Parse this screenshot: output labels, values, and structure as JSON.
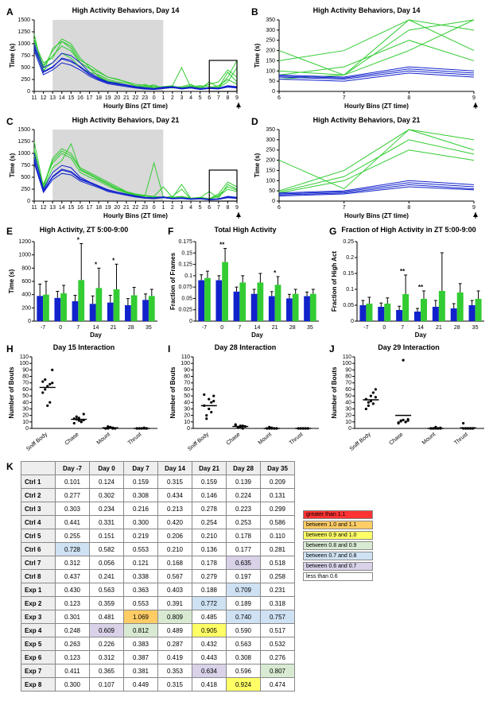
{
  "colors": {
    "green": "#33cc33",
    "blue": "#1122cc",
    "shade": "#d9d9d9",
    "black": "#000000",
    "grid": "#cccccc",
    "red": "#ff3333",
    "orange": "#ffcc66",
    "yellow": "#ffff66",
    "ltgreen": "#d9ead3",
    "ltblue": "#cfe2f3",
    "ltpurple": "#d9d2e9",
    "white": "#ffffff"
  },
  "panelA": {
    "label": "A",
    "title": "High Activity Behaviors, Day 14",
    "ylabel": "Time (s)",
    "xlabel": "Hourly Bins (ZT time)",
    "ylim": [
      0,
      1500
    ],
    "ytick": 250,
    "xticks": [
      "11",
      "12",
      "13",
      "14",
      "15",
      "16",
      "17",
      "18",
      "19",
      "20",
      "21",
      "22",
      "23",
      "0",
      "1",
      "2",
      "3",
      "4",
      "5",
      "6",
      "7",
      "8",
      "9"
    ],
    "shade_x": [
      2,
      14
    ],
    "zoom_box": [
      19,
      22,
      0,
      650
    ],
    "lines": {
      "green": [
        [
          1050,
          600,
          700,
          1050,
          900,
          600,
          480,
          400,
          300,
          250,
          200,
          100,
          150,
          80,
          100,
          120,
          500,
          80,
          100,
          60,
          80,
          400,
          200
        ],
        [
          1100,
          500,
          850,
          1100,
          1000,
          700,
          500,
          300,
          200,
          150,
          120,
          80,
          100,
          140,
          60,
          80,
          100,
          150,
          50,
          200,
          80,
          300,
          650
        ],
        [
          1000,
          450,
          600,
          800,
          700,
          500,
          400,
          350,
          250,
          200,
          180,
          120,
          100,
          80,
          60,
          90,
          70,
          100,
          60,
          80,
          120,
          250,
          150
        ],
        [
          900,
          550,
          750,
          950,
          850,
          600,
          480,
          320,
          220,
          180,
          140,
          90,
          110,
          70,
          90,
          110,
          80,
          120,
          80,
          150,
          200,
          450,
          300
        ],
        [
          1200,
          400,
          900,
          1050,
          950,
          650,
          550,
          420,
          300,
          260,
          200,
          150,
          130,
          110,
          90,
          70,
          80,
          100,
          120,
          100,
          80,
          200,
          500
        ]
      ],
      "blue": [
        [
          950,
          400,
          500,
          700,
          650,
          500,
          350,
          250,
          180,
          150,
          120,
          80,
          60,
          50,
          70,
          90,
          60,
          80,
          50,
          70,
          60,
          100,
          80
        ],
        [
          850,
          350,
          450,
          600,
          550,
          450,
          320,
          230,
          160,
          130,
          100,
          70,
          50,
          40,
          60,
          80,
          50,
          70,
          40,
          60,
          50,
          90,
          70
        ],
        [
          1000,
          500,
          600,
          800,
          750,
          600,
          400,
          280,
          200,
          170,
          140,
          100,
          80,
          60,
          90,
          100,
          70,
          90,
          60,
          80,
          70,
          120,
          100
        ],
        [
          900,
          420,
          520,
          680,
          620,
          520,
          370,
          260,
          190,
          160,
          130,
          90,
          70,
          55,
          75,
          95,
          65,
          85,
          55,
          75,
          65,
          110,
          90
        ]
      ]
    }
  },
  "panelB": {
    "label": "B",
    "title": "High Activity Behaviors, Day 14",
    "ylabel": "Time (s)",
    "xlabel": "Hourly Bins (ZT time)",
    "ylim": [
      0,
      350
    ],
    "ytick": 50,
    "xticks": [
      "6",
      "7",
      "8",
      "9"
    ],
    "lines": {
      "green": [
        [
          60,
          80,
          400,
          200
        ],
        [
          200,
          80,
          300,
          650
        ],
        [
          80,
          120,
          250,
          150
        ],
        [
          150,
          200,
          450,
          300
        ],
        [
          100,
          80,
          200,
          500
        ]
      ],
      "blue": [
        [
          70,
          60,
          100,
          80
        ],
        [
          60,
          50,
          90,
          70
        ],
        [
          80,
          70,
          120,
          100
        ],
        [
          75,
          65,
          110,
          90
        ]
      ]
    }
  },
  "panelC": {
    "label": "C",
    "title": "High Activity Behaviors, Day 21",
    "ylabel": "Time (s)",
    "xlabel": "Hourly Bins (ZT time)",
    "ylim": [
      0,
      1500
    ],
    "ytick": 250,
    "xticks": [
      "11",
      "12",
      "13",
      "14",
      "15",
      "16",
      "17",
      "18",
      "19",
      "20",
      "21",
      "22",
      "23",
      "0",
      "1",
      "2",
      "3",
      "4",
      "5",
      "6",
      "7",
      "8",
      "9"
    ],
    "shade_x": [
      2,
      14
    ],
    "zoom_box": [
      19,
      22,
      0,
      650
    ],
    "lines": {
      "green": [
        [
          1250,
          300,
          900,
          1100,
          1000,
          700,
          600,
          500,
          400,
          300,
          200,
          150,
          120,
          100,
          300,
          80,
          100,
          60,
          80,
          50,
          150,
          400,
          300
        ],
        [
          1100,
          250,
          700,
          850,
          1200,
          650,
          550,
          450,
          350,
          250,
          180,
          130,
          100,
          800,
          90,
          70,
          90,
          50,
          70,
          200,
          60,
          350,
          250
        ],
        [
          950,
          350,
          800,
          1000,
          900,
          600,
          500,
          420,
          320,
          230,
          170,
          120,
          80,
          90,
          70,
          100,
          250,
          40,
          60,
          40,
          100,
          250,
          200
        ],
        [
          1050,
          280,
          850,
          1050,
          950,
          670,
          570,
          470,
          370,
          270,
          190,
          140,
          110,
          95,
          85,
          75,
          350,
          55,
          75,
          45,
          120,
          300,
          230
        ]
      ],
      "blue": [
        [
          900,
          200,
          500,
          650,
          600,
          450,
          380,
          300,
          220,
          180,
          140,
          100,
          70,
          60,
          80,
          50,
          60,
          40,
          50,
          30,
          40,
          80,
          60
        ],
        [
          800,
          180,
          450,
          580,
          550,
          420,
          350,
          280,
          200,
          160,
          120,
          85,
          60,
          50,
          70,
          45,
          55,
          35,
          45,
          25,
          35,
          70,
          55
        ],
        [
          1000,
          250,
          600,
          750,
          700,
          500,
          400,
          320,
          240,
          190,
          150,
          110,
          80,
          70,
          90,
          60,
          70,
          50,
          60,
          40,
          50,
          100,
          80
        ],
        [
          850,
          220,
          520,
          670,
          620,
          470,
          390,
          310,
          230,
          185,
          145,
          105,
          75,
          65,
          85,
          55,
          65,
          45,
          55,
          35,
          45,
          90,
          70
        ]
      ]
    }
  },
  "panelD": {
    "label": "D",
    "title": "High Activity Behaviors, Day 21",
    "ylabel": "Time (s)",
    "xlabel": "Hourly Bins (ZT time)",
    "ylim": [
      0,
      350
    ],
    "ytick": 50,
    "xticks": [
      "6",
      "7",
      "8",
      "9"
    ],
    "lines": {
      "green": [
        [
          50,
          150,
          400,
          300
        ],
        [
          200,
          60,
          350,
          250
        ],
        [
          40,
          100,
          250,
          200
        ],
        [
          45,
          120,
          300,
          230
        ]
      ],
      "blue": [
        [
          30,
          40,
          80,
          60
        ],
        [
          25,
          35,
          70,
          55
        ],
        [
          40,
          50,
          100,
          80
        ],
        [
          35,
          45,
          90,
          70
        ]
      ]
    }
  },
  "panelE": {
    "label": "E",
    "title": "High Activity, ZT 5:00-9:00",
    "ylabel": "Time (s)",
    "xlabel": "Day",
    "ylim": [
      0,
      1200
    ],
    "ytick": 200,
    "categories": [
      "-7",
      "0",
      "7",
      "14",
      "21",
      "28",
      "35"
    ],
    "bars": {
      "blue": [
        380,
        350,
        300,
        260,
        280,
        240,
        320
      ],
      "green": [
        400,
        420,
        620,
        500,
        480,
        390,
        380
      ]
    },
    "err": {
      "blue": [
        180,
        100,
        90,
        120,
        110,
        100,
        90
      ],
      "green": [
        200,
        120,
        550,
        300,
        380,
        120,
        100
      ]
    },
    "sig": {
      "7": "*",
      "14": "*",
      "21": "*"
    }
  },
  "panelF": {
    "label": "F",
    "title": "Total High Activity",
    "ylabel": "Fraction of Frames",
    "xlabel": "Day",
    "ylim": [
      0,
      0.175
    ],
    "ytick": 0.025,
    "categories": [
      "-7",
      "0",
      "7",
      "14",
      "21",
      "28",
      "35"
    ],
    "bars": {
      "blue": [
        0.09,
        0.09,
        0.065,
        0.06,
        0.055,
        0.05,
        0.055
      ],
      "green": [
        0.095,
        0.13,
        0.085,
        0.085,
        0.08,
        0.06,
        0.06
      ]
    },
    "err": {
      "blue": [
        0.012,
        0.01,
        0.01,
        0.01,
        0.01,
        0.009,
        0.009
      ],
      "green": [
        0.015,
        0.03,
        0.015,
        0.02,
        0.018,
        0.01,
        0.01
      ]
    },
    "sig": {
      "0": "**",
      "21": "*"
    }
  },
  "panelG": {
    "label": "G",
    "title": "Fraction of High Activity in ZT 5:00-9:00",
    "ylabel": "Fraction of High Act",
    "xlabel": "Day",
    "ylim": [
      0,
      0.25
    ],
    "ytick": 0.05,
    "categories": [
      "-7",
      "0",
      "7",
      "14",
      "21",
      "28",
      "35"
    ],
    "bars": {
      "blue": [
        0.05,
        0.045,
        0.035,
        0.03,
        0.045,
        0.04,
        0.05
      ],
      "green": [
        0.055,
        0.055,
        0.085,
        0.07,
        0.095,
        0.09,
        0.07
      ]
    },
    "err": {
      "blue": [
        0.015,
        0.012,
        0.012,
        0.01,
        0.02,
        0.015,
        0.015
      ],
      "green": [
        0.02,
        0.018,
        0.06,
        0.025,
        0.12,
        0.028,
        0.025
      ]
    },
    "sig": {
      "7": "**",
      "14": "**"
    }
  },
  "panelH": {
    "label": "H",
    "title": "Day 15 Interaction",
    "ylabel": "Number of Bouts",
    "ylim": [
      0,
      110
    ],
    "ytick": 10,
    "categories": [
      "Sniff Body",
      "Chase",
      "Mount",
      "Thrust"
    ],
    "points": {
      "Sniff Body": [
        55,
        60,
        65,
        68,
        70,
        72,
        75,
        35,
        40,
        90
      ],
      "Chase": [
        15,
        18,
        12,
        10,
        22,
        8,
        14,
        16,
        11,
        13
      ],
      "Mount": [
        0,
        0,
        2,
        1,
        0,
        0,
        3,
        1,
        0,
        0
      ],
      "Thrust": [
        0,
        0,
        0,
        1,
        0,
        0,
        0,
        0,
        0,
        0
      ]
    },
    "means": {
      "Sniff Body": 63,
      "Chase": 14,
      "Mount": 1,
      "Thrust": 0
    }
  },
  "panelI": {
    "label": "I",
    "title": "Day 28 Interaction",
    "ylabel": "Number of Bouts",
    "ylim": [
      0,
      110
    ],
    "ytick": 10,
    "categories": [
      "Sniff Body",
      "Chase",
      "Mount",
      "Thrust"
    ],
    "points": {
      "Sniff Body": [
        35,
        20,
        45,
        40,
        50,
        52,
        15,
        30,
        25,
        42
      ],
      "Chase": [
        5,
        2,
        4,
        0,
        3,
        6,
        1,
        2,
        4,
        3
      ],
      "Mount": [
        0,
        0,
        1,
        0,
        0,
        0,
        2,
        0,
        0,
        0
      ],
      "Thrust": [
        0,
        0,
        0,
        0,
        0,
        0,
        0,
        0,
        0,
        0
      ]
    },
    "means": {
      "Sniff Body": 35,
      "Chase": 3,
      "Mount": 0,
      "Thrust": 0
    }
  },
  "panelJ": {
    "label": "J",
    "title": "Day 29 Interaction",
    "ylabel": "Number of Bouts",
    "ylim": [
      0,
      110
    ],
    "ytick": 10,
    "categories": [
      "Sniff Body",
      "Chase",
      "Mount",
      "Thrust"
    ],
    "points": {
      "Sniff Body": [
        30,
        35,
        50,
        55,
        60,
        45,
        40,
        42,
        38,
        48
      ],
      "Chase": [
        8,
        12,
        105,
        10,
        14,
        9,
        11,
        13,
        10,
        12
      ],
      "Mount": [
        0,
        0,
        2,
        0,
        1,
        0,
        0,
        0,
        0,
        0
      ],
      "Thrust": [
        0,
        0,
        0,
        0,
        0,
        8,
        0,
        0,
        0,
        0
      ]
    },
    "means": {
      "Sniff Body": 44,
      "Chase": 20,
      "Mount": 0,
      "Thrust": 1
    }
  },
  "panelK": {
    "label": "K",
    "columns": [
      "",
      "Day -7",
      "Day 0",
      "Day 7",
      "Day 14",
      "Day 21",
      "Day 28",
      "Day 35"
    ],
    "rows": [
      {
        "name": "Ctrl 1",
        "vals": [
          0.101,
          0.124,
          0.159,
          0.315,
          0.159,
          0.139,
          0.209
        ]
      },
      {
        "name": "Ctrl 2",
        "vals": [
          0.277,
          0.302,
          0.308,
          0.434,
          0.146,
          0.224,
          0.131
        ]
      },
      {
        "name": "Ctrl 3",
        "vals": [
          0.303,
          0.234,
          0.216,
          0.213,
          0.278,
          0.223,
          0.299
        ]
      },
      {
        "name": "Ctrl 4",
        "vals": [
          0.441,
          0.331,
          0.3,
          0.42,
          0.254,
          0.253,
          0.586
        ]
      },
      {
        "name": "Ctrl 5",
        "vals": [
          0.255,
          0.151,
          0.219,
          0.206,
          0.21,
          0.178,
          0.11
        ]
      },
      {
        "name": "Ctrl 6",
        "vals": [
          0.728,
          0.582,
          0.553,
          0.21,
          0.136,
          0.177,
          0.281
        ]
      },
      {
        "name": "Ctrl 7",
        "vals": [
          0.312,
          0.056,
          0.121,
          0.168,
          0.178,
          0.635,
          0.518
        ]
      },
      {
        "name": "Ctrl 8",
        "vals": [
          0.437,
          0.241,
          0.338,
          0.567,
          0.279,
          0.197,
          0.258
        ]
      },
      {
        "name": "Exp 1",
        "vals": [
          0.43,
          0.563,
          0.363,
          0.403,
          0.188,
          0.709,
          0.231
        ]
      },
      {
        "name": "Exp 2",
        "vals": [
          0.123,
          0.359,
          0.553,
          0.391,
          0.772,
          0.189,
          0.318
        ]
      },
      {
        "name": "Exp 3",
        "vals": [
          0.301,
          0.481,
          1.069,
          0.809,
          0.485,
          0.74,
          0.757
        ]
      },
      {
        "name": "Exp 4",
        "vals": [
          0.248,
          0.609,
          0.812,
          0.489,
          0.905,
          0.59,
          0.517
        ]
      },
      {
        "name": "Exp 5",
        "vals": [
          0.263,
          0.226,
          0.383,
          0.287,
          0.432,
          0.563,
          0.532
        ]
      },
      {
        "name": "Exp 6",
        "vals": [
          0.123,
          0.312,
          0.387,
          0.419,
          0.443,
          0.308,
          0.276
        ]
      },
      {
        "name": "Exp 7",
        "vals": [
          0.411,
          0.365,
          0.381,
          0.353,
          0.634,
          0.596,
          0.807
        ]
      },
      {
        "name": "Exp 8",
        "vals": [
          0.3,
          0.107,
          0.449,
          0.315,
          0.418,
          0.924,
          0.474
        ]
      }
    ],
    "legend": [
      {
        "label": "greater than 1.1",
        "color": "red"
      },
      {
        "label": "between 1.0 and 1.1",
        "color": "orange"
      },
      {
        "label": "between 0.9 and 1.0",
        "color": "yellow"
      },
      {
        "label": "between 0.8 and 0.9",
        "color": "ltgreen"
      },
      {
        "label": "between 0.7 and 0.8",
        "color": "ltblue"
      },
      {
        "label": "between 0.6 and 0.7",
        "color": "ltpurple"
      },
      {
        "label": "less than 0.6",
        "color": "white"
      }
    ]
  }
}
